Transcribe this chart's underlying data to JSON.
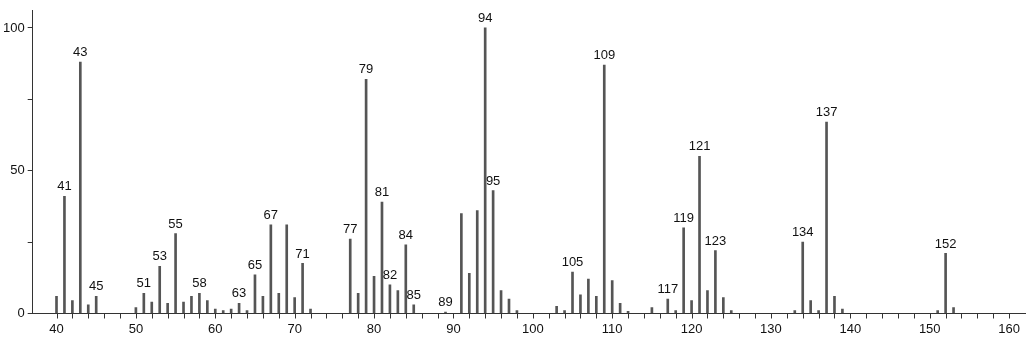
{
  "chart_data": {
    "type": "bar",
    "color": "#555555",
    "x": [
      40,
      41,
      42,
      43,
      44,
      45,
      50,
      51,
      52,
      53,
      54,
      55,
      56,
      57,
      58,
      59,
      60,
      61,
      62,
      63,
      64,
      65,
      66,
      67,
      68,
      69,
      70,
      71,
      72,
      77,
      78,
      79,
      80,
      81,
      82,
      83,
      84,
      85,
      89,
      91,
      92,
      93,
      94,
      95,
      96,
      97,
      98,
      103,
      104,
      105,
      106,
      107,
      108,
      109,
      110,
      111,
      112,
      115,
      117,
      118,
      119,
      120,
      121,
      122,
      123,
      124,
      125,
      133,
      134,
      135,
      136,
      137,
      138,
      139,
      151,
      152,
      153
    ],
    "values": [
      6,
      41,
      4.5,
      88,
      3,
      6,
      2,
      7,
      4,
      16.5,
      3.5,
      28,
      4,
      6,
      7,
      4.5,
      1.5,
      1,
      1.5,
      3.5,
      1,
      13.5,
      6,
      31,
      7,
      31,
      5.5,
      17.5,
      1.5,
      26,
      7,
      82,
      13,
      39,
      10,
      8,
      24,
      3,
      0.5,
      35,
      14,
      36,
      100,
      43,
      8,
      5,
      1,
      2.5,
      1,
      14.5,
      6.5,
      12,
      6,
      87,
      11.5,
      3.5,
      0.7,
      2,
      5,
      1,
      30,
      4.5,
      55,
      8,
      22,
      5.5,
      1,
      1,
      25,
      4.5,
      1,
      67,
      6,
      1.5,
      1,
      21,
      2
    ],
    "xlim": [
      37,
      162
    ],
    "xticks": [
      40,
      {
        "value": 42,
        "label": null
      },
      {
        "value": 44,
        "label": null
      },
      {
        "value": 46,
        "label": null
      },
      {
        "value": 48,
        "label": null
      },
      50,
      {
        "value": 52,
        "label": null
      },
      {
        "value": 54,
        "label": null
      },
      {
        "value": 56,
        "label": null
      },
      {
        "value": 58,
        "label": null
      },
      60,
      {
        "value": 62,
        "label": null
      },
      {
        "value": 64,
        "label": null
      },
      {
        "value": 66,
        "label": null
      },
      {
        "value": 68,
        "label": null
      },
      70,
      {
        "value": 72,
        "label": null
      },
      {
        "value": 74,
        "label": null
      },
      {
        "value": 76,
        "label": null
      },
      {
        "value": 78,
        "label": null
      },
      80,
      {
        "value": 82,
        "label": null
      },
      {
        "value": 84,
        "label": null
      },
      {
        "value": 86,
        "label": null
      },
      {
        "value": 88,
        "label": null
      },
      90,
      {
        "value": 92,
        "label": null
      },
      {
        "value": 94,
        "label": null
      },
      {
        "value": 96,
        "label": null
      },
      {
        "value": 98,
        "label": null
      },
      100,
      {
        "value": 102,
        "label": null
      },
      {
        "value": 104,
        "label": null
      },
      {
        "value": 106,
        "label": null
      },
      {
        "value": 108,
        "label": null
      },
      110,
      {
        "value": 112,
        "label": null
      },
      {
        "value": 114,
        "label": null
      },
      {
        "value": 116,
        "label": null
      },
      {
        "value": 118,
        "label": null
      },
      120,
      {
        "value": 122,
        "label": null
      },
      {
        "value": 124,
        "label": null
      },
      {
        "value": 126,
        "label": null
      },
      {
        "value": 128,
        "label": null
      },
      130,
      {
        "value": 132,
        "label": null
      },
      {
        "value": 134,
        "label": null
      },
      {
        "value": 136,
        "label": null
      },
      {
        "value": 138,
        "label": null
      },
      140,
      {
        "value": 142,
        "label": null
      },
      {
        "value": 144,
        "label": null
      },
      {
        "value": 146,
        "label": null
      },
      {
        "value": 148,
        "label": null
      },
      150,
      {
        "value": 152,
        "label": null
      },
      {
        "value": 154,
        "label": null
      },
      {
        "value": 156,
        "label": null
      },
      {
        "value": 158,
        "label": null
      },
      160
    ],
    "ylim": [
      0,
      106
    ],
    "yticks": [
      0,
      {
        "value": 25,
        "label": null
      },
      50,
      {
        "value": 75,
        "label": null
      },
      100
    ],
    "grid": false,
    "legend": false,
    "annotations": [
      {
        "text": "41",
        "x": 41,
        "y": 41
      },
      {
        "text": "43",
        "x": 43,
        "y": 88
      },
      {
        "text": "45",
        "x": 45,
        "y": 6
      },
      {
        "text": "51",
        "x": 51,
        "y": 7
      },
      {
        "text": "53",
        "x": 53,
        "y": 16.5
      },
      {
        "text": "55",
        "x": 55,
        "y": 28
      },
      {
        "text": "58",
        "x": 58,
        "y": 7
      },
      {
        "text": "63",
        "x": 63,
        "y": 3.5
      },
      {
        "text": "65",
        "x": 65,
        "y": 13.5
      },
      {
        "text": "67",
        "x": 67,
        "y": 31
      },
      {
        "text": "71",
        "x": 71,
        "y": 17.5
      },
      {
        "text": "77",
        "x": 77,
        "y": 26
      },
      {
        "text": "79",
        "x": 79,
        "y": 82
      },
      {
        "text": "81",
        "x": 81,
        "y": 39
      },
      {
        "text": "82",
        "x": 82,
        "y": 10
      },
      {
        "text": "84",
        "x": 84,
        "y": 24
      },
      {
        "text": "85",
        "x": 85,
        "y": 3
      },
      {
        "text": "89",
        "x": 89,
        "y": 0.5
      },
      {
        "text": "94",
        "x": 94,
        "y": 100
      },
      {
        "text": "95",
        "x": 95,
        "y": 43
      },
      {
        "text": "105",
        "x": 105,
        "y": 14.5
      },
      {
        "text": "109",
        "x": 109,
        "y": 87
      },
      {
        "text": "117",
        "x": 117,
        "y": 5
      },
      {
        "text": "119",
        "x": 119,
        "y": 30
      },
      {
        "text": "121",
        "x": 121,
        "y": 55
      },
      {
        "text": "123",
        "x": 123,
        "y": 22
      },
      {
        "text": "134",
        "x": 134,
        "y": 25
      },
      {
        "text": "137",
        "x": 137,
        "y": 67
      },
      {
        "text": "152",
        "x": 152,
        "y": 21
      }
    ]
  }
}
